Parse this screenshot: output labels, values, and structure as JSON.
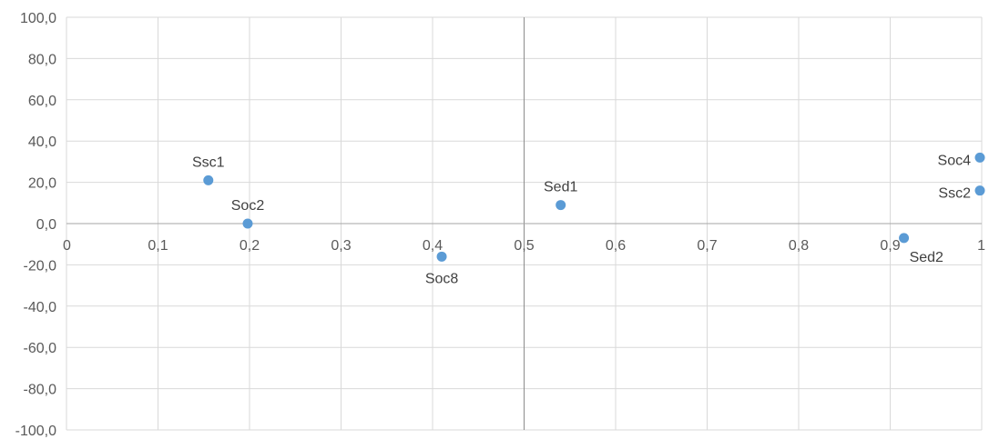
{
  "chart_data": {
    "type": "scatter",
    "xlim": [
      0,
      1
    ],
    "ylim": [
      -100,
      100
    ],
    "x_ticks": [
      0,
      0.1,
      0.2,
      0.3,
      0.4,
      0.5,
      0.6,
      0.7,
      0.8,
      0.9,
      1
    ],
    "x_tick_labels": [
      "0",
      "0,1",
      "0,2",
      "0,3",
      "0,4",
      "0,5",
      "0,6",
      "0,7",
      "0,8",
      "0,9",
      "1"
    ],
    "y_ticks": [
      100,
      80,
      60,
      40,
      20,
      0,
      -20,
      -40,
      -60,
      -80,
      -100
    ],
    "y_tick_labels": [
      "100,0",
      "80,0",
      "60,0",
      "40,0",
      "20,0",
      "0,0",
      "-20,0",
      "-40,0",
      "-60,0",
      "-80,0",
      "-100,0"
    ],
    "reference_line_x": 0.5,
    "grid": true,
    "marker_color": "#5b9bd5",
    "points": [
      {
        "label": "Ssc1",
        "x": 0.155,
        "y": 21,
        "label_pos": "above"
      },
      {
        "label": "Soc2",
        "x": 0.198,
        "y": 0,
        "label_pos": "above"
      },
      {
        "label": "Soc8",
        "x": 0.41,
        "y": -16,
        "label_pos": "below"
      },
      {
        "label": "Sed1",
        "x": 0.54,
        "y": 9,
        "label_pos": "above"
      },
      {
        "label": "Sed2",
        "x": 0.915,
        "y": -7,
        "label_pos": "below-right"
      },
      {
        "label": "Soc4",
        "x": 0.998,
        "y": 32,
        "label_pos": "left"
      },
      {
        "label": "Ssc2",
        "x": 0.998,
        "y": 16,
        "label_pos": "left"
      }
    ]
  }
}
